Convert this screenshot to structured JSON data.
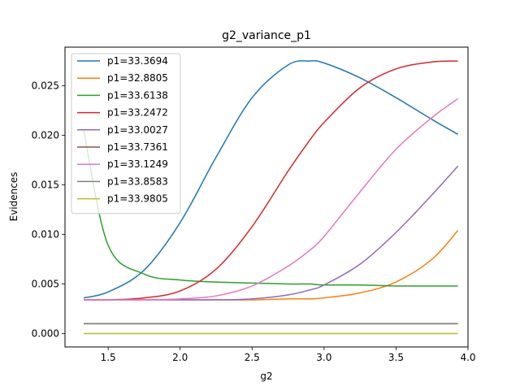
{
  "chart_data": {
    "type": "line",
    "title": "g2_variance_p1",
    "xlabel": "g2",
    "ylabel": "Evidences",
    "xlim": [
      1.2,
      4.0
    ],
    "ylim": [
      -0.00135,
      0.0289
    ],
    "xticks": [
      1.5,
      2.0,
      2.5,
      3.0,
      3.5,
      4.0
    ],
    "xtick_labels": [
      "1.5",
      "2.0",
      "2.5",
      "3.0",
      "3.5",
      "4.0"
    ],
    "yticks": [
      0.0,
      0.005,
      0.01,
      0.015,
      0.02,
      0.025
    ],
    "ytick_labels": [
      "0.000",
      "0.005",
      "0.010",
      "0.015",
      "0.020",
      "0.025"
    ],
    "grid": false,
    "legend_position": "upper-left",
    "x": [
      1.33,
      1.5,
      1.75,
      2.0,
      2.25,
      2.5,
      2.75,
      2.9,
      3.0,
      3.25,
      3.5,
      3.75,
      3.93
    ],
    "series": [
      {
        "name": "p1=33.3694",
        "color": "#1f77b4",
        "values": [
          0.0036,
          0.0042,
          0.0064,
          0.0112,
          0.0178,
          0.0238,
          0.0271,
          0.0275,
          0.0273,
          0.0258,
          0.0238,
          0.0216,
          0.0201
        ]
      },
      {
        "name": "p1=32.8805",
        "color": "#ff7f0e",
        "values": [
          0.0034,
          0.0034,
          0.0034,
          0.0034,
          0.0034,
          0.0034,
          0.0035,
          0.0035,
          0.0036,
          0.0041,
          0.0052,
          0.0075,
          0.0104
        ]
      },
      {
        "name": "p1=33.6138",
        "color": "#2ca02c",
        "values": [
          0.0205,
          0.0089,
          0.006,
          0.0054,
          0.0052,
          0.0051,
          0.005,
          0.005,
          0.0049,
          0.0049,
          0.0048,
          0.0048,
          0.0048
        ]
      },
      {
        "name": "p1=33.2472",
        "color": "#d62728",
        "values": [
          0.0034,
          0.0034,
          0.0036,
          0.0043,
          0.0065,
          0.0108,
          0.0164,
          0.0195,
          0.0213,
          0.0248,
          0.0267,
          0.0274,
          0.0275
        ]
      },
      {
        "name": "p1=33.0027",
        "color": "#9467bd",
        "values": [
          0.0034,
          0.0034,
          0.0034,
          0.0034,
          0.0034,
          0.0035,
          0.0039,
          0.0044,
          0.0049,
          0.007,
          0.0102,
          0.014,
          0.0169
        ]
      },
      {
        "name": "p1=33.7361",
        "color": "#8c564b",
        "values": [
          0.001,
          0.001,
          0.001,
          0.001,
          0.001,
          0.001,
          0.001,
          0.001,
          0.001,
          0.001,
          0.001,
          0.001,
          0.001
        ]
      },
      {
        "name": "p1=33.1249",
        "color": "#e377c2",
        "values": [
          0.0034,
          0.0034,
          0.0034,
          0.0035,
          0.0038,
          0.0048,
          0.0068,
          0.0084,
          0.0098,
          0.0143,
          0.0186,
          0.0218,
          0.0237
        ]
      },
      {
        "name": "p1=33.8583",
        "color": "#7f7f7f",
        "values": [
          0.001,
          0.001,
          0.001,
          0.001,
          0.001,
          0.001,
          0.001,
          0.001,
          0.001,
          0.001,
          0.001,
          0.001,
          0.001
        ]
      },
      {
        "name": "p1=33.9805",
        "color": "#bcbd22",
        "values": [
          0.0,
          0.0,
          0.0,
          0.0,
          0.0,
          0.0,
          0.0,
          0.0,
          0.0,
          0.0,
          0.0,
          0.0,
          0.0
        ]
      }
    ]
  }
}
